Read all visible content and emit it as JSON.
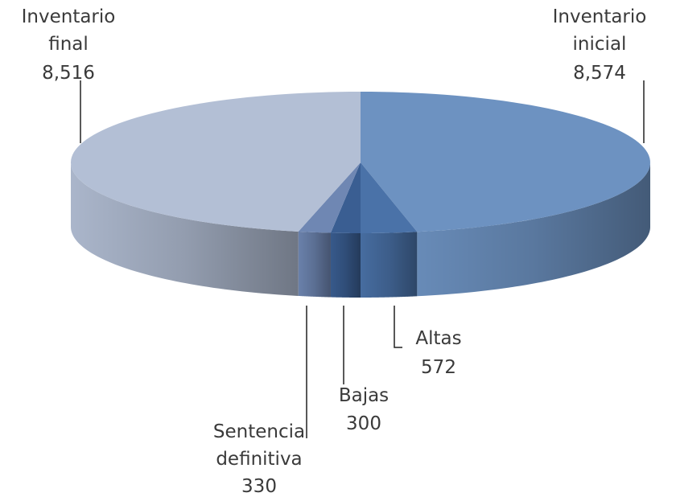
{
  "chart_data": {
    "type": "pie",
    "categories": [
      "Inventario inicial",
      "Altas",
      "Bajas",
      "Sentencia definitiva",
      "Inventario final"
    ],
    "values": [
      8574,
      572,
      300,
      330,
      8516
    ],
    "value_labels": [
      "8,574",
      "572",
      "300",
      "330",
      "8,516"
    ],
    "colors": [
      "#6d92c1",
      "#4a72a8",
      "#3a5e92",
      "#6f87b3",
      "#b3bfd5"
    ]
  }
}
